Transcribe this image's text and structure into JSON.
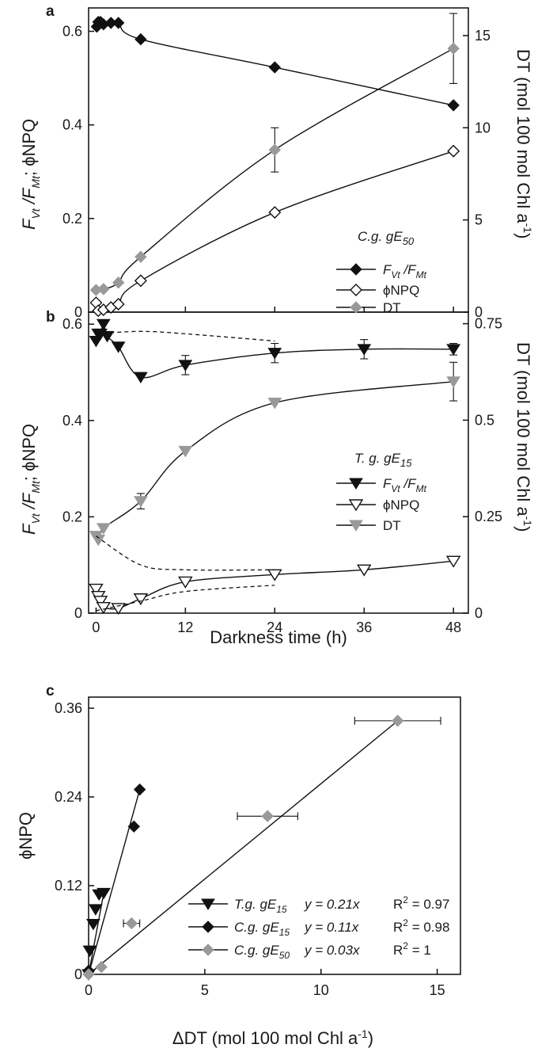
{
  "chart_data": [
    {
      "panel": "a",
      "type": "line",
      "ylabel_left": "F_Vt/F_Mt; ϕNPQ",
      "ylabel_right": "DT (mol 100 mol Chl a⁻¹)",
      "ylim_left": [
        0,
        0.65
      ],
      "ylim_right": [
        0,
        16.5
      ],
      "xlim": [
        -1,
        50
      ],
      "yticks_left": [
        "0",
        "0.2",
        "0.4",
        "0.6"
      ],
      "yticks_right": [
        "0",
        "5",
        "10",
        "15"
      ],
      "legend_title": "C.g. gE50",
      "legend_position": "lower-right",
      "series": [
        {
          "name": "FVt/FMt",
          "axis": "left",
          "marker": "diamond",
          "color": "#111111",
          "fill": "#111111",
          "points": [
            [
              0.1,
              0.61
            ],
            [
              0.3,
              0.62
            ],
            [
              0.6,
              0.62
            ],
            [
              1,
              0.615
            ],
            [
              2,
              0.618
            ],
            [
              3,
              0.618
            ],
            [
              6,
              0.583
            ],
            [
              24,
              0.523
            ],
            [
              48,
              0.442
            ]
          ]
        },
        {
          "name": "ϕNPQ",
          "axis": "left",
          "marker": "diamond",
          "color": "#111111",
          "fill": "#ffffff",
          "points": [
            [
              0,
              0.02
            ],
            [
              0.3,
              0.003
            ],
            [
              1,
              0.005
            ],
            [
              2,
              0.01
            ],
            [
              3,
              0.017
            ],
            [
              6,
              0.067
            ],
            [
              24,
              0.213
            ],
            [
              48,
              0.344
            ]
          ]
        },
        {
          "name": "DT",
          "axis": "right",
          "marker": "diamond",
          "color": "#999999",
          "fill": "#999999",
          "points": [
            [
              0,
              1.2
            ],
            [
              1,
              1.25
            ],
            [
              3,
              1.6
            ],
            [
              6,
              3.0
            ],
            [
              24,
              8.8
            ],
            [
              48,
              14.3
            ]
          ],
          "errors": [
            0,
            0,
            0,
            0,
            1.2,
            1.9
          ]
        }
      ]
    },
    {
      "panel": "b",
      "type": "line",
      "ylabel_left": "F_Vt/F_Mt; ϕNPQ",
      "ylabel_right": "DT (mol 100 mol Chl a⁻¹)",
      "xlabel": "Darkness time (h)",
      "ylim_left": [
        0,
        0.625
      ],
      "ylim_right": [
        0,
        0.78
      ],
      "xlim": [
        -1,
        50
      ],
      "xticks": [
        "0",
        "12",
        "24",
        "36",
        "48"
      ],
      "yticks_left": [
        "0",
        "0.2",
        "0.4",
        "0.6"
      ],
      "yticks_right": [
        "0",
        "0.25",
        "0.5",
        "0.75"
      ],
      "legend_title": "T. g. gE15",
      "legend_position": "middle-right",
      "series": [
        {
          "name": "FVt/FMt",
          "axis": "left",
          "marker": "triangle-down",
          "color": "#111111",
          "fill": "#111111",
          "points": [
            [
              0,
              0.565
            ],
            [
              0.3,
              0.58
            ],
            [
              0.6,
              0.58
            ],
            [
              1,
              0.6
            ],
            [
              1.5,
              0.575
            ],
            [
              3,
              0.553
            ],
            [
              6,
              0.49
            ],
            [
              12,
              0.515
            ],
            [
              24,
              0.54
            ],
            [
              36,
              0.548
            ],
            [
              48,
              0.548
            ]
          ],
          "errors": [
            0,
            0,
            0,
            0,
            0,
            0,
            0,
            0.02,
            0.02,
            0.02,
            0.012
          ]
        },
        {
          "name": "ϕNPQ",
          "axis": "left",
          "marker": "triangle-down",
          "color": "#111111",
          "fill": "#ffffff",
          "points": [
            [
              0,
              0.05
            ],
            [
              0.3,
              0.035
            ],
            [
              0.6,
              0.025
            ],
            [
              1,
              0.012
            ],
            [
              3,
              0.01
            ],
            [
              6,
              0.03
            ],
            [
              12,
              0.065
            ],
            [
              24,
              0.08
            ],
            [
              36,
              0.09
            ],
            [
              48,
              0.108
            ]
          ]
        },
        {
          "name": "DT",
          "axis": "right",
          "marker": "triangle-down",
          "color": "#999999",
          "fill": "#999999",
          "points": [
            [
              0,
              0.2
            ],
            [
              0.3,
              0.19
            ],
            [
              1,
              0.22
            ],
            [
              6,
              0.29
            ],
            [
              12,
              0.42
            ],
            [
              24,
              0.545
            ],
            [
              48,
              0.6
            ]
          ],
          "errors": [
            0,
            0,
            0,
            0.02,
            0,
            0,
            0.05
          ]
        }
      ]
    },
    {
      "panel": "c",
      "type": "scatter",
      "ylabel": "ϕNPQ",
      "xlabel": "ΔDT (mol 100 mol Chl a⁻¹)",
      "xlim": [
        0,
        16
      ],
      "ylim": [
        0,
        0.375
      ],
      "xticks": [
        "0",
        "5",
        "10",
        "15"
      ],
      "yticks": [
        "0",
        "0.12",
        "0.24",
        "0.36"
      ],
      "legend_position": "lower-right",
      "series": [
        {
          "name": "T.g. gE15",
          "fit": "y = 0.21x",
          "r2": "R² = 0.97",
          "slope": 0.21,
          "marker": "triangle-down",
          "color": "#111111",
          "fill": "#111111",
          "points": [
            [
              0,
              0
            ],
            [
              0.05,
              0.032
            ],
            [
              0.2,
              0.068
            ],
            [
              0.3,
              0.088
            ],
            [
              0.45,
              0.108
            ],
            [
              0.65,
              0.11
            ]
          ]
        },
        {
          "name": "C.g. gE15",
          "fit": "y = 0.11x",
          "r2": "R² = 0.98",
          "slope": 0.11,
          "marker": "diamond",
          "color": "#111111",
          "fill": "#111111",
          "points": [
            [
              0,
              0.005
            ],
            [
              1.95,
              0.2
            ],
            [
              2.2,
              0.25
            ]
          ]
        },
        {
          "name": "C.g. gE50",
          "fit": "y = 0.03x",
          "r2": "R² = 1",
          "slope": 0.026,
          "marker": "diamond",
          "color": "#999999",
          "fill": "#999999",
          "points": [
            [
              0,
              0
            ],
            [
              0.55,
              0.01
            ],
            [
              1.85,
              0.069
            ],
            [
              7.7,
              0.214
            ],
            [
              13.3,
              0.343
            ]
          ],
          "xerrors": [
            0,
            0,
            0.35,
            1.3,
            1.85
          ]
        }
      ]
    }
  ],
  "labels": {
    "a": "a",
    "b": "b",
    "c": "c",
    "fvt": "F",
    "fvt_sub1": "Vt",
    "slash": " /F",
    "fvt_sub2": "Mt",
    "semi": "; ϕNPQ",
    "dt_axis": "DT (mol 100 mol Chl a",
    "dt_sup": "-1",
    "dt_close": ")",
    "darkness": "Darkness time (h)",
    "phinpq": "ϕNPQ",
    "ddt": "ΔDT (mol 100 mol Chl a",
    "ddt_sup": "-1",
    "ddt_close": ")",
    "legend_a_title": "C.g. gE",
    "legend_a_title_sub": "50",
    "legend_b_title": "T. g. gE",
    "legend_b_title_sub": "15",
    "leg_fv": "F",
    "leg_fv_sub": "Vt",
    "leg_fv_mid": " /F",
    "leg_fv_sub2": "Mt",
    "leg_npq": "ϕNPQ",
    "leg_dt": "DT",
    "leg_c1": "T.g. gE",
    "leg_c1_sub": "15",
    "leg_c1_eq": "y = 0.21x",
    "leg_c1_r2": "R",
    "leg_c1_r2v": " = 0.97",
    "leg_c2": "C.g. gE",
    "leg_c2_sub": "15",
    "leg_c2_eq": "y = 0.11x",
    "leg_c2_r2": "R",
    "leg_c2_r2v": " = 0.98",
    "leg_c3": "C.g. gE",
    "leg_c3_sub": "50",
    "leg_c3_eq": "y = 0.03x",
    "leg_c3_r2": "R",
    "leg_c3_r2v": " = 1",
    "two": "2"
  }
}
